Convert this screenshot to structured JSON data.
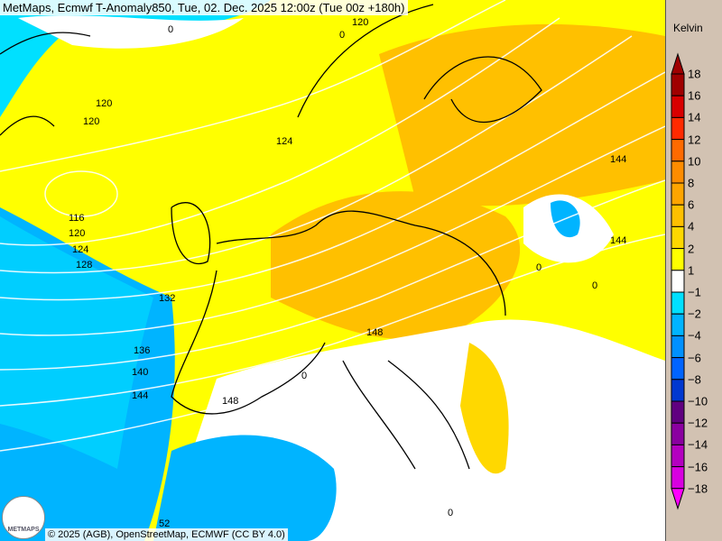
{
  "title": "MetMaps, Ecmwf T-Anomaly850, Tue, 02. Dec. 2025 12:00z (Tue 00z +180h)",
  "footer": "© 2025 (AGB), OpenStreetMap, ECMWF (CC BY 4.0)",
  "logo": "METMAPS",
  "legend": {
    "unit": "Kelvin",
    "labels": [
      "18",
      "16",
      "14",
      "12",
      "10",
      "8",
      "6",
      "4",
      "2",
      "1",
      "−1",
      "−2",
      "−4",
      "−6",
      "−8",
      "−10",
      "−12",
      "−14",
      "−16",
      "−18"
    ],
    "colors": [
      "#a00000",
      "#d80000",
      "#ff2a00",
      "#ff6a00",
      "#ff8c00",
      "#ffa500",
      "#ffc000",
      "#ffd800",
      "#ffff00",
      "#ffffff",
      "#00e0ff",
      "#00b4ff",
      "#0090ff",
      "#0064ff",
      "#0038d0",
      "#600080",
      "#8a00a0",
      "#b400c0",
      "#d800e0",
      "#ff00ff"
    ]
  },
  "contour_labels": [
    "120",
    "120",
    "120",
    "116",
    "120",
    "124",
    "128",
    "132",
    "136",
    "140",
    "144",
    "148",
    "144",
    "148",
    "124",
    "144",
    "0",
    "0",
    "0",
    "0",
    "0",
    "0",
    "52"
  ]
}
